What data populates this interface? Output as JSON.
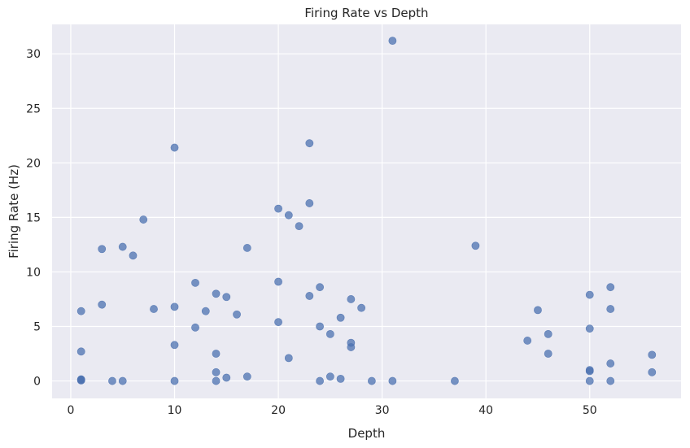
{
  "chart_data": {
    "type": "scatter",
    "title": "Firing Rate vs Depth",
    "xlabel": "Depth",
    "ylabel": "Firing Rate (Hz)",
    "xlim": [
      -1.8,
      58.8
    ],
    "ylim": [
      -1.6,
      32.7
    ],
    "xticks": [
      0,
      10,
      20,
      30,
      40,
      50
    ],
    "yticks": [
      0,
      5,
      10,
      15,
      20,
      25,
      30
    ],
    "grid": true,
    "background": "#eaeaf2",
    "point_color": "#4c72b0",
    "x": [
      1,
      1,
      1,
      1,
      1,
      3,
      3,
      4,
      5,
      5,
      6,
      7,
      8,
      10,
      10,
      10,
      10,
      12,
      12,
      13,
      14,
      14,
      14,
      14,
      15,
      15,
      16,
      17,
      17,
      20,
      20,
      20,
      21,
      21,
      22,
      23,
      23,
      23,
      24,
      24,
      24,
      25,
      25,
      26,
      26,
      27,
      27,
      27,
      28,
      29,
      31,
      31,
      37,
      39,
      44,
      45,
      46,
      46,
      50,
      50,
      50,
      50,
      50,
      52,
      52,
      52,
      52,
      56,
      56
    ],
    "y": [
      6.4,
      2.7,
      0.1,
      0.15,
      0.05,
      12.1,
      7.0,
      0.0,
      12.3,
      0.0,
      11.5,
      14.8,
      6.6,
      21.4,
      6.8,
      3.3,
      0.0,
      9.0,
      4.9,
      6.4,
      8.0,
      2.5,
      0.8,
      0.0,
      7.7,
      0.3,
      6.1,
      12.2,
      0.4,
      15.8,
      9.1,
      5.4,
      15.2,
      2.1,
      14.2,
      21.8,
      16.3,
      7.8,
      8.6,
      5.0,
      0.0,
      4.3,
      0.4,
      5.8,
      0.2,
      7.5,
      3.5,
      3.1,
      6.7,
      0.0,
      31.2,
      0.0,
      0.0,
      12.4,
      3.7,
      6.5,
      4.3,
      2.5,
      7.9,
      4.8,
      1.0,
      0.9,
      0.0,
      8.6,
      6.6,
      1.6,
      0.0,
      2.4,
      0.8
    ]
  }
}
